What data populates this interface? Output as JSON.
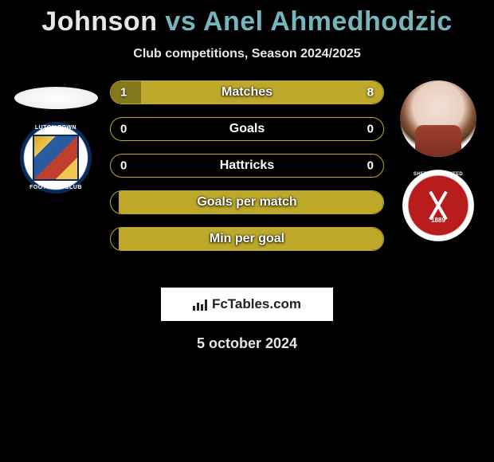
{
  "title": {
    "player1": "Johnson",
    "vs": "vs",
    "player2": "Anel Ahmedhodzic"
  },
  "subtitle": "Club competitions, Season 2024/2025",
  "colors": {
    "player1": "#857920",
    "player2": "#bda82a",
    "title_p2": "#73b6bd"
  },
  "clubs": {
    "left": {
      "name": "Luton Town",
      "text_top": "LUTON TOWN",
      "text_bot": "FOOTBALL CLUB"
    },
    "right": {
      "name": "Sheffield United",
      "text_top": "SHEFFIELD UNITED",
      "year": "1889"
    }
  },
  "stats": [
    {
      "label": "Matches",
      "left_val": "1",
      "right_val": "8",
      "left_pct": 11,
      "right_pct": 89
    },
    {
      "label": "Goals",
      "left_val": "0",
      "right_val": "0",
      "left_pct": 0,
      "right_pct": 0
    },
    {
      "label": "Hattricks",
      "left_val": "0",
      "right_val": "0",
      "left_pct": 0,
      "right_pct": 0
    },
    {
      "label": "Goals per match",
      "left_val": "",
      "right_val": "",
      "left_pct": 0,
      "right_pct": 97
    },
    {
      "label": "Min per goal",
      "left_val": "",
      "right_val": "",
      "left_pct": 0,
      "right_pct": 97
    }
  ],
  "branding": "FcTables.com",
  "date": "5 october 2024"
}
